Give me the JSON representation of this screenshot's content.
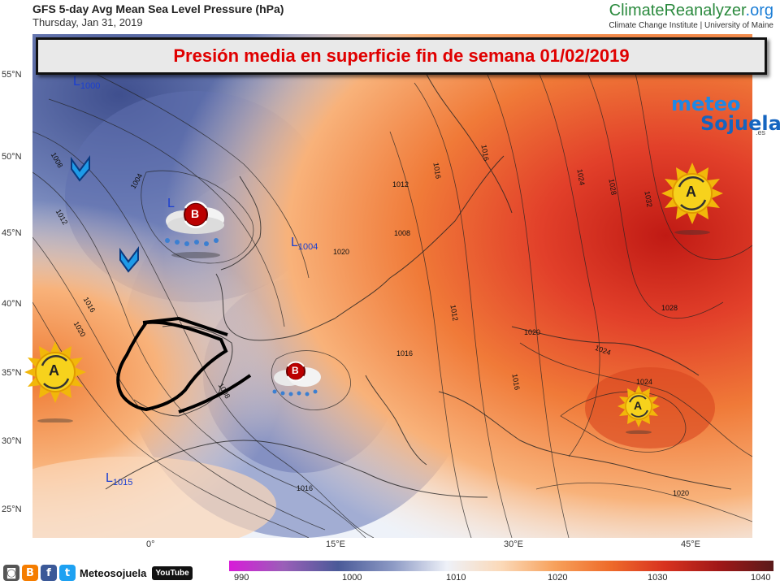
{
  "header": {
    "title": "GFS 5-day Avg Mean Sea Level Pressure (hPa)",
    "date": "Thursday, Jan 31, 2019",
    "brand_main": "ClimateReanalyzer",
    "brand_tld": ".org",
    "brand_sub": "Climate Change Institute | University of Maine"
  },
  "banner": {
    "text": "Presión media en superficie fin de semana 01/02/2019"
  },
  "watermark": {
    "text_a": "meteo",
    "text_b": "Sojuela",
    "text_c": ".es"
  },
  "axes": {
    "latitudes": [
      "55°N",
      "50°N",
      "45°N",
      "40°N",
      "35°N",
      "30°N",
      "25°N"
    ],
    "longitudes": [
      "0°",
      "15°E",
      "30°E",
      "45°E"
    ]
  },
  "isobar_labels": [
    "1008",
    "1012",
    "1016",
    "1020",
    "1004",
    "1016",
    "1012",
    "1008",
    "1016",
    "1020",
    "1024",
    "1028",
    "1032",
    "1024",
    "1028",
    "1020",
    "1016",
    "1012",
    "1016",
    "1020",
    "1024",
    "1016",
    "1008"
  ],
  "pressure_centers": [
    {
      "kind": "L",
      "value": "1000"
    },
    {
      "kind": "L",
      "value": "1004"
    },
    {
      "kind": "L",
      "value": "1015"
    }
  ],
  "weather_symbols": [
    {
      "letter": "B",
      "kind": "low-rain"
    },
    {
      "letter": "B",
      "kind": "low-rain"
    },
    {
      "letter": "A",
      "kind": "high-sun"
    },
    {
      "letter": "A",
      "kind": "high-sun"
    },
    {
      "letter": "A",
      "kind": "high-sun"
    }
  ],
  "colorbar": {
    "ticks": [
      "990",
      "1000",
      "1010",
      "1020",
      "1030",
      "1040"
    ],
    "colors": [
      "#d81bd8",
      "#9a5fb8",
      "#4a5a98",
      "#8c99c4",
      "#eef1f8",
      "#fbd9b8",
      "#f7a05a",
      "#ee6b2a",
      "#d8321f",
      "#a01818",
      "#5a1a1a"
    ]
  },
  "footer": {
    "social_label": "Meteosojuela",
    "youtube_label": "YouTube",
    "icons": [
      "camera-icon",
      "blogger-icon",
      "facebook-icon",
      "twitter-icon",
      "youtube-icon"
    ]
  },
  "colors": {
    "banner_text": "#e00000",
    "low_label": "#1a3fd1"
  }
}
